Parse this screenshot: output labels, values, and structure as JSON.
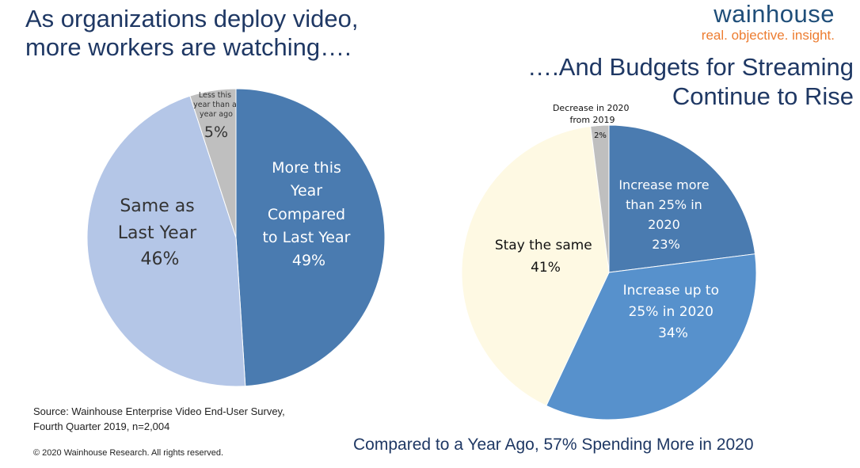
{
  "titles": {
    "left_line1": "As organizations deploy video,",
    "left_line2": "more workers are watching….",
    "right_line1": "….And Budgets for Streaming",
    "right_line2": "Continue to Rise"
  },
  "brand": {
    "name": "wainhouse",
    "tagline": "real. objective. insight."
  },
  "source": {
    "line1": "Source: Wainhouse Enterprise Video End-User Survey,",
    "line2": "Fourth Quarter 2019, n=2,004"
  },
  "copyright": "© 2020 Wainhouse Research.  All rights reserved.",
  "footer": "Compared to a Year Ago, 57% Spending More in 2020",
  "colors": {
    "dark_blue": "#4a7bb0",
    "light_blue": "#b4c6e7",
    "gray": "#bfbfbf",
    "mid_blue": "#5791cc",
    "cream": "#fef9e3",
    "title": "#1f3864",
    "brand": "#1f4e79",
    "tagline": "#ed7d31"
  },
  "chart_data": [
    {
      "type": "pie",
      "slices": [
        {
          "label_lines": [
            "More this",
            "Year",
            "Compared",
            "to Last Year"
          ],
          "value_label": "49%",
          "value": 49,
          "color": "#4a7bb0"
        },
        {
          "label_lines": [
            "Same as",
            "Last Year"
          ],
          "value_label": "46%",
          "value": 46,
          "color": "#b4c6e7"
        },
        {
          "label_lines": [
            "Less this",
            "year than a",
            "year ago"
          ],
          "value_label": "5%",
          "value": 5,
          "color": "#bfbfbf"
        }
      ]
    },
    {
      "type": "pie",
      "slices": [
        {
          "label_lines": [
            "Increase more",
            "than 25% in",
            "2020"
          ],
          "value_label": "23%",
          "value": 23,
          "color": "#4a7bb0"
        },
        {
          "label_lines": [
            "Increase up to",
            "25% in 2020"
          ],
          "value_label": "34%",
          "value": 34,
          "color": "#5791cc"
        },
        {
          "label_lines": [
            "Stay the same"
          ],
          "value_label": "41%",
          "value": 41,
          "color": "#fef9e3"
        },
        {
          "label_lines": [
            "Decrease in 2020",
            "from 2019"
          ],
          "value_label": "2%",
          "value": 2,
          "color": "#bfbfbf"
        }
      ]
    }
  ]
}
